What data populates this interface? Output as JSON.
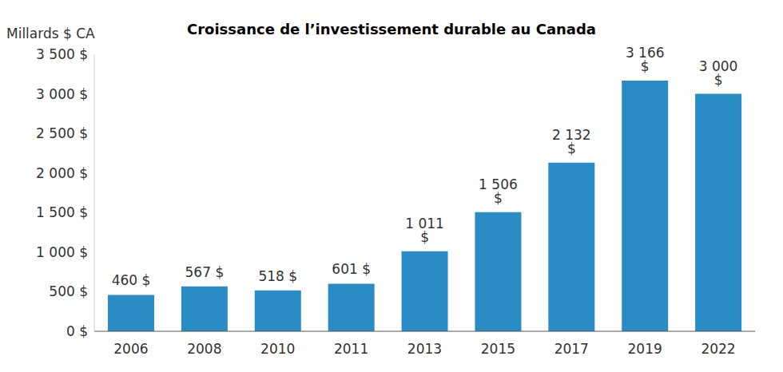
{
  "chart_data": {
    "type": "bar",
    "title": "Croissance de l’investissement durable au Canada",
    "ylabel": "Millards $ CA",
    "categories": [
      "2006",
      "2008",
      "2010",
      "2011",
      "2013",
      "2015",
      "2017",
      "2019",
      "2022"
    ],
    "values": [
      460,
      567,
      518,
      601,
      1011,
      1506,
      2132,
      3166,
      3000
    ],
    "value_labels": [
      "460 $",
      "567 $",
      "518 $",
      "601 $",
      "1 011 $",
      "1 506 $",
      "2 132 $",
      "3 166 $",
      "3 000 $"
    ],
    "color": "#2a8cc4",
    "ylim": [
      0,
      3500
    ],
    "yticks": [
      {
        "value": 0,
        "label": "0 $"
      },
      {
        "value": 500,
        "label": "500 $"
      },
      {
        "value": 1000,
        "label": "1 000 $"
      },
      {
        "value": 1500,
        "label": "1 500 $"
      },
      {
        "value": 2000,
        "label": "2 000 $"
      },
      {
        "value": 2500,
        "label": "2 500 $"
      },
      {
        "value": 3000,
        "label": "3 000 $"
      },
      {
        "value": 3500,
        "label": "3 500 $"
      }
    ],
    "grid": false,
    "data_labels": true
  }
}
